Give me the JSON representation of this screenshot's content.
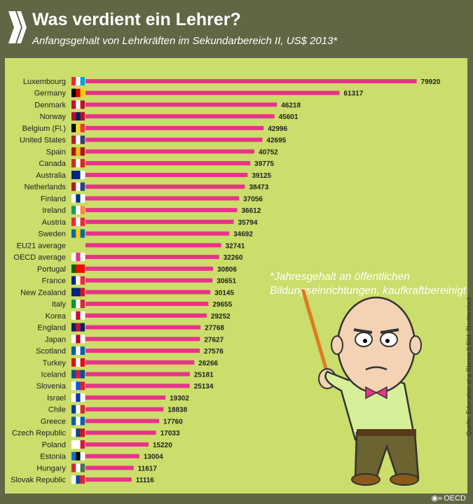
{
  "header": {
    "title": "Was verdient ein Lehrer?",
    "subtitle": "Anfangsgehalt von Lehrkräften im Sekundarbereich II, US$ 2013*"
  },
  "footnote": {
    "line1": "*Jahresgehalt an öffentlichen",
    "line2": "Bildungseinrichtungen, kaufkraftbereinigt"
  },
  "source": "Quelle: Education at a Glance || Bild: Shutterstock",
  "brand": "OECD",
  "colors": {
    "bar": "#e8338a",
    "panel": "#cbdd6a",
    "header": "#636645"
  },
  "chart_data": {
    "type": "bar",
    "orientation": "horizontal",
    "title": "Was verdient ein Lehrer?",
    "subtitle": "Anfangsgehalt von Lehrkräften im Sekundarbereich II, US$ 2013*",
    "categories": [
      "Luxembourg",
      "Germany",
      "Denmark",
      "Norway",
      "Belgium (Fl.)",
      "United States",
      "Spain",
      "Canada",
      "Australia",
      "Netherlands",
      "Finland",
      "Ireland",
      "Austria",
      "Sweden",
      "EU21 average",
      "OECD average",
      "Portugal",
      "France",
      "New Zealand",
      "Italy",
      "Korea",
      "England",
      "Japan",
      "Scotland",
      "Turkey",
      "Iceland",
      "Slovenia",
      "Israel",
      "Chile",
      "Greece",
      "Czech Republic",
      "Poland",
      "Estonia",
      "Hungary",
      "Slovak Republic"
    ],
    "values": [
      79920,
      61317,
      46218,
      45601,
      42996,
      42695,
      40752,
      39775,
      39125,
      38473,
      37056,
      36612,
      35794,
      34692,
      32741,
      32260,
      30806,
      30651,
      30145,
      29655,
      29252,
      27768,
      27627,
      27576,
      26266,
      25181,
      25134,
      19302,
      18838,
      17760,
      17033,
      15220,
      13004,
      11617,
      11116
    ],
    "flags": [
      [
        "#ed2939",
        "#fff",
        "#00a1de"
      ],
      [
        "#000",
        "#dd0000",
        "#ffce00"
      ],
      [
        "#c60c30",
        "#fff",
        "#c60c30"
      ],
      [
        "#ba0c2f",
        "#00205b",
        "#ba0c2f"
      ],
      [
        "#000",
        "#fdda24",
        "#ef3340"
      ],
      [
        "#b22234",
        "#fff",
        "#3c3b6e"
      ],
      [
        "#aa151b",
        "#f1bf00",
        "#aa151b"
      ],
      [
        "#d52b1e",
        "#fff",
        "#d52b1e"
      ],
      [
        "#00247d",
        "#00247d",
        "#fff"
      ],
      [
        "#ae1c28",
        "#fff",
        "#21468b"
      ],
      [
        "#fff",
        "#003580",
        "#fff"
      ],
      [
        "#169b62",
        "#fff",
        "#ff883e"
      ],
      [
        "#ed2939",
        "#fff",
        "#ed2939"
      ],
      [
        "#006aa7",
        "#fecc00",
        "#006aa7"
      ],
      [],
      [
        "#fff",
        "#e8338a",
        "#fff"
      ],
      [
        "#006600",
        "#ff0000",
        "#ff0000"
      ],
      [
        "#002395",
        "#fff",
        "#ed2939"
      ],
      [
        "#00247d",
        "#00247d",
        "#cc142b"
      ],
      [
        "#009246",
        "#fff",
        "#ce2b37"
      ],
      [
        "#fff",
        "#c60c30",
        "#fff"
      ],
      [
        "#012169",
        "#c8102e",
        "#012169"
      ],
      [
        "#fff",
        "#bc002d",
        "#fff"
      ],
      [
        "#005eb8",
        "#fff",
        "#005eb8"
      ],
      [
        "#e30a17",
        "#fff",
        "#e30a17"
      ],
      [
        "#02529c",
        "#dc1e35",
        "#02529c"
      ],
      [
        "#fff",
        "#005ce5",
        "#ed1c24"
      ],
      [
        "#fff",
        "#0038b8",
        "#fff"
      ],
      [
        "#0039a6",
        "#fff",
        "#d52b1e"
      ],
      [
        "#0d5eaf",
        "#fff",
        "#0d5eaf"
      ],
      [
        "#fff",
        "#11457e",
        "#d7141a"
      ],
      [
        "#fff",
        "#fff",
        "#dc143c"
      ],
      [
        "#0072ce",
        "#000",
        "#fff"
      ],
      [
        "#ce2939",
        "#fff",
        "#477050"
      ],
      [
        "#fff",
        "#0b4ea2",
        "#ee1c25"
      ]
    ],
    "xlim": [
      0,
      80000
    ],
    "grid": false,
    "legend": "none"
  }
}
